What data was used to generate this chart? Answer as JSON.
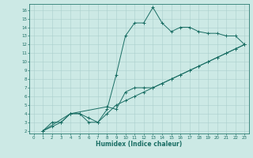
{
  "xlabel": "Humidex (Indice chaleur)",
  "bg_color": "#cce9e5",
  "grid_color": "#aacfcc",
  "line_color": "#1a6e64",
  "spine_color": "#2a7a70",
  "xlim": [
    -0.5,
    23.5
  ],
  "ylim": [
    1.7,
    16.7
  ],
  "xticks": [
    0,
    1,
    2,
    3,
    4,
    5,
    6,
    7,
    8,
    9,
    10,
    11,
    12,
    13,
    14,
    15,
    16,
    17,
    18,
    19,
    20,
    21,
    22,
    23
  ],
  "yticks": [
    2,
    3,
    4,
    5,
    6,
    7,
    8,
    9,
    10,
    11,
    12,
    13,
    14,
    15,
    16
  ],
  "line1_x": [
    1,
    2,
    3,
    4,
    5,
    6,
    7,
    8,
    9,
    10,
    11,
    12,
    13,
    14,
    15,
    16,
    17,
    18,
    19,
    20,
    21,
    22,
    23
  ],
  "line1_y": [
    2.0,
    3.0,
    3.0,
    4.0,
    4.0,
    3.0,
    3.0,
    4.5,
    8.5,
    13.0,
    14.5,
    14.5,
    16.3,
    14.5,
    13.5,
    14.0,
    14.0,
    13.5,
    13.3,
    13.3,
    13.0,
    13.0,
    12.0
  ],
  "line2_x": [
    1,
    2,
    3,
    4,
    5,
    6,
    7,
    8,
    9,
    10,
    11,
    12,
    13,
    14,
    15,
    16,
    17,
    18,
    19,
    20,
    21,
    22,
    23
  ],
  "line2_y": [
    2.0,
    2.5,
    3.0,
    4.0,
    4.0,
    3.5,
    3.0,
    4.0,
    5.0,
    5.5,
    6.0,
    6.5,
    7.0,
    7.5,
    8.0,
    8.5,
    9.0,
    9.5,
    10.0,
    10.5,
    11.0,
    11.5,
    12.0
  ],
  "line3_x": [
    1,
    4,
    8,
    9,
    10,
    11,
    12,
    13,
    14,
    15,
    16,
    17,
    18,
    19,
    20,
    21,
    22,
    23
  ],
  "line3_y": [
    2.0,
    4.0,
    4.8,
    4.5,
    6.5,
    7.0,
    7.0,
    7.0,
    7.5,
    8.0,
    8.5,
    9.0,
    9.5,
    10.0,
    10.5,
    11.0,
    11.5,
    12.0
  ]
}
